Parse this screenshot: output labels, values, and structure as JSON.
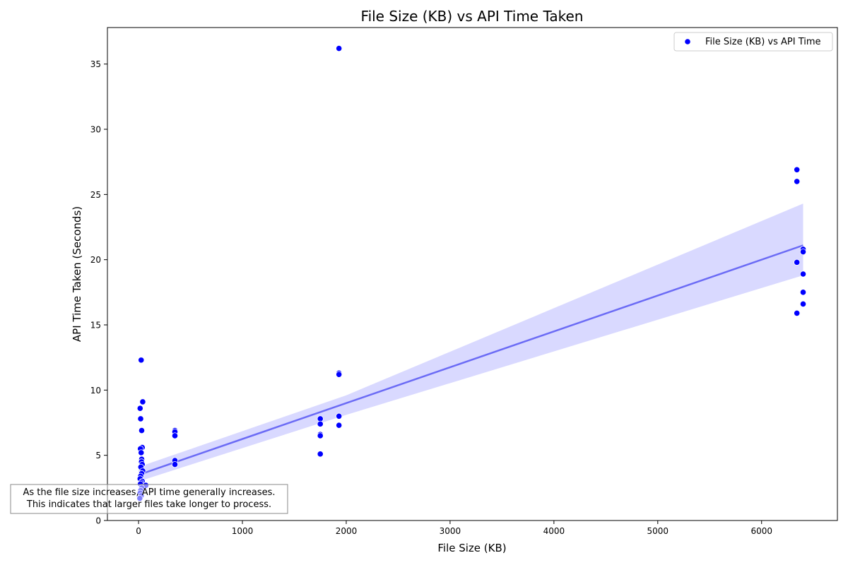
{
  "chart_data": {
    "type": "scatter",
    "title": "File Size (KB) vs API Time Taken",
    "xlabel": "File Size (KB)",
    "ylabel": "API Time Taken (Seconds)",
    "xlim": [
      -300,
      6730
    ],
    "ylim": [
      0,
      37.8
    ],
    "xticks": [
      0,
      1000,
      2000,
      3000,
      4000,
      5000,
      6000
    ],
    "yticks": [
      0,
      5,
      10,
      15,
      20,
      25,
      30,
      35
    ],
    "grid": false,
    "legend": {
      "position": "top-right",
      "entries": [
        "File Size (KB) vs API Time"
      ]
    },
    "series": [
      {
        "name": "File Size (KB) vs API Time",
        "color": "#0000ff",
        "points": [
          [
            25,
            12.3
          ],
          [
            40,
            9.1
          ],
          [
            15,
            8.6
          ],
          [
            20,
            7.8
          ],
          [
            30,
            6.9
          ],
          [
            35,
            5.6
          ],
          [
            18,
            5.5
          ],
          [
            25,
            5.2
          ],
          [
            30,
            4.7
          ],
          [
            28,
            4.5
          ],
          [
            35,
            4.3
          ],
          [
            22,
            4.1
          ],
          [
            40,
            3.8
          ],
          [
            30,
            3.6
          ],
          [
            20,
            3.4
          ],
          [
            15,
            3.2
          ],
          [
            35,
            3.0
          ],
          [
            25,
            2.9
          ],
          [
            18,
            2.8
          ],
          [
            70,
            2.7
          ],
          [
            30,
            2.5
          ],
          [
            20,
            2.3
          ],
          [
            15,
            2.1
          ],
          [
            25,
            1.9
          ],
          [
            12,
            1.7
          ],
          [
            350,
            6.9
          ],
          [
            350,
            6.8
          ],
          [
            350,
            6.5
          ],
          [
            350,
            4.6
          ],
          [
            350,
            4.3
          ],
          [
            1750,
            7.8
          ],
          [
            1750,
            7.4
          ],
          [
            1750,
            6.6
          ],
          [
            1750,
            6.5
          ],
          [
            1750,
            5.1
          ],
          [
            1930,
            36.2
          ],
          [
            1930,
            11.3
          ],
          [
            1930,
            11.2
          ],
          [
            1930,
            8.0
          ],
          [
            1930,
            7.3
          ],
          [
            6340,
            26.9
          ],
          [
            6340,
            26.0
          ],
          [
            6340,
            19.8
          ],
          [
            6340,
            15.9
          ],
          [
            6400,
            20.8
          ],
          [
            6400,
            20.6
          ],
          [
            6400,
            18.9
          ],
          [
            6400,
            17.5
          ],
          [
            6400,
            16.6
          ]
        ]
      }
    ],
    "fit": {
      "type": "linear",
      "color": "#6b6bf5",
      "band_color": "#d9d9ff",
      "line": [
        [
          0,
          3.5
        ],
        [
          6400,
          21.1
        ]
      ],
      "band_upper": [
        [
          0,
          4.1
        ],
        [
          2000,
          9.6
        ],
        [
          6400,
          24.3
        ]
      ],
      "band_lower": [
        [
          0,
          3.0
        ],
        [
          2000,
          8.1
        ],
        [
          6400,
          18.8
        ]
      ]
    },
    "annotation": "As the file size increases, API time generally increases.\nThis indicates that larger files take longer to process."
  }
}
